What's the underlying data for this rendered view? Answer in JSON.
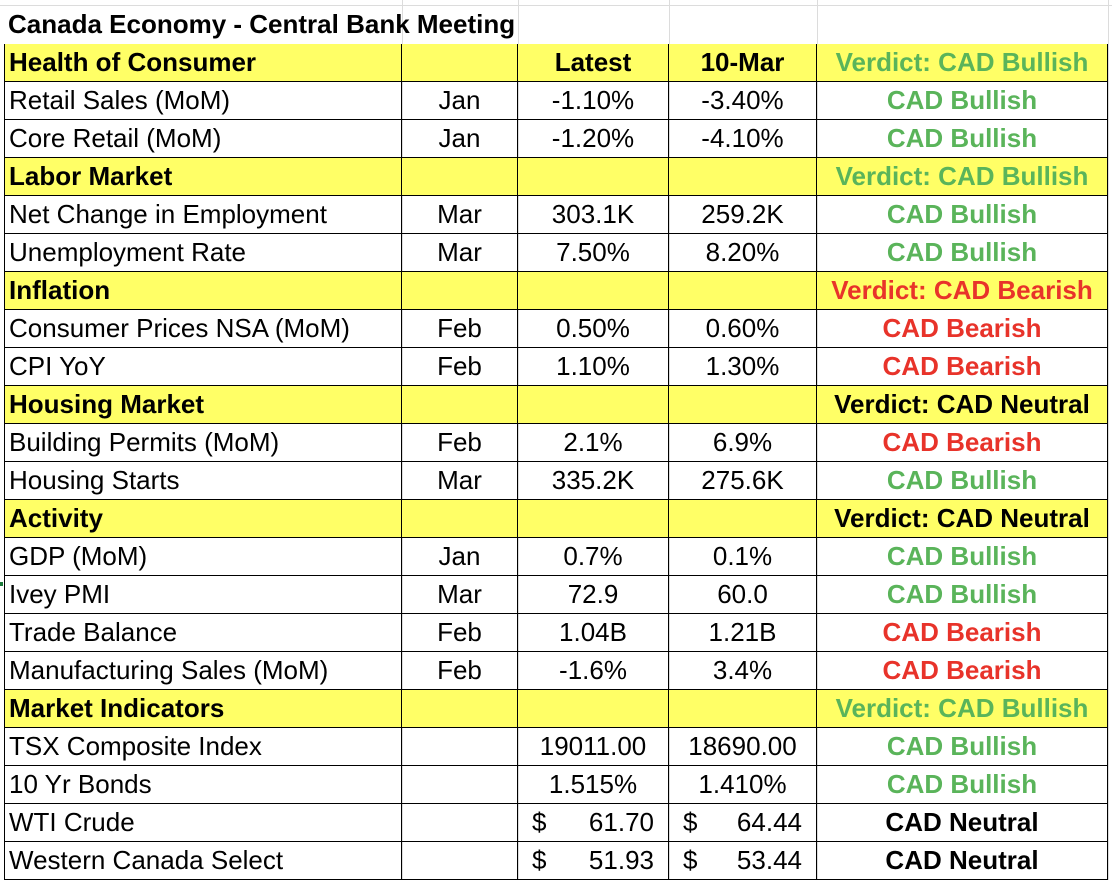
{
  "title": "Canada Economy - Central Bank Meeting",
  "rows": [
    {
      "type": "header",
      "label": "Health of Consumer",
      "period": "",
      "latest": "Latest",
      "prev": "10-Mar",
      "verdict": "Verdict: CAD Bullish",
      "verdict_color": "#5ab45a"
    },
    {
      "type": "data",
      "label": "Retail Sales (MoM)",
      "period": "Jan",
      "latest": "-1.10%",
      "prev": "-3.40%",
      "verdict": "CAD Bullish",
      "verdict_color": "#5ab45a"
    },
    {
      "type": "data",
      "label": "Core Retail (MoM)",
      "period": "Jan",
      "latest": "-1.20%",
      "prev": "-4.10%",
      "verdict": "CAD Bullish",
      "verdict_color": "#5ab45a"
    },
    {
      "type": "header",
      "label": "Labor Market",
      "period": "",
      "latest": "",
      "prev": "",
      "verdict": "Verdict: CAD Bullish",
      "verdict_color": "#5ab45a"
    },
    {
      "type": "data",
      "label": "Net Change in Employment",
      "period": "Mar",
      "latest": "303.1K",
      "prev": "259.2K",
      "verdict": "CAD Bullish",
      "verdict_color": "#5ab45a"
    },
    {
      "type": "data",
      "label": "Unemployment Rate",
      "period": "Mar",
      "latest": "7.50%",
      "prev": "8.20%",
      "verdict": "CAD Bullish",
      "verdict_color": "#5ab45a"
    },
    {
      "type": "header",
      "label": "Inflation",
      "period": "",
      "latest": "",
      "prev": "",
      "verdict": "Verdict: CAD Bearish",
      "verdict_color": "#e8332a"
    },
    {
      "type": "data",
      "label": "Consumer Prices NSA (MoM)",
      "period": "Feb",
      "latest": "0.50%",
      "prev": "0.60%",
      "verdict": "CAD Bearish",
      "verdict_color": "#e8332a"
    },
    {
      "type": "data",
      "label": "CPI YoY",
      "period": "Feb",
      "latest": "1.10%",
      "prev": "1.30%",
      "verdict": "CAD Bearish",
      "verdict_color": "#e8332a"
    },
    {
      "type": "header",
      "label": "Housing Market",
      "period": "",
      "latest": "",
      "prev": "",
      "verdict": "Verdict: CAD Neutral",
      "verdict_color": "#000000"
    },
    {
      "type": "data",
      "label": "Building Permits (MoM)",
      "period": "Feb",
      "latest": "2.1%",
      "prev": "6.9%",
      "verdict": "CAD Bearish",
      "verdict_color": "#e8332a"
    },
    {
      "type": "data",
      "label": "Housing Starts",
      "period": "Mar",
      "latest": "335.2K",
      "prev": "275.6K",
      "verdict": "CAD Bullish",
      "verdict_color": "#5ab45a"
    },
    {
      "type": "header",
      "label": "Activity",
      "period": "",
      "latest": "",
      "prev": "",
      "verdict": "Verdict: CAD Neutral",
      "verdict_color": "#000000"
    },
    {
      "type": "data",
      "label": "GDP (MoM)",
      "period": "Jan",
      "latest": "0.7%",
      "prev": "0.1%",
      "verdict": "CAD Bullish",
      "verdict_color": "#5ab45a"
    },
    {
      "type": "data",
      "label": "Ivey PMI",
      "period": "Mar",
      "latest": "72.9",
      "prev": "60.0",
      "verdict": "CAD Bullish",
      "verdict_color": "#5ab45a"
    },
    {
      "type": "data",
      "label": "Trade Balance",
      "period": "Feb",
      "latest": "1.04B",
      "prev": "1.21B",
      "verdict": "CAD Bearish",
      "verdict_color": "#e8332a"
    },
    {
      "type": "data",
      "label": "Manufacturing Sales (MoM)",
      "period": "Feb",
      "latest": "-1.6%",
      "prev": "3.4%",
      "verdict": "CAD Bearish",
      "verdict_color": "#e8332a"
    },
    {
      "type": "header",
      "label": "Market Indicators",
      "period": "",
      "latest": "",
      "prev": "",
      "verdict": "Verdict: CAD Bullish",
      "verdict_color": "#5ab45a"
    },
    {
      "type": "data",
      "label": "TSX Composite Index",
      "period": "",
      "latest": "19011.00",
      "prev": "18690.00",
      "verdict": "CAD Bullish",
      "verdict_color": "#5ab45a"
    },
    {
      "type": "data",
      "label": "10 Yr Bonds",
      "period": "",
      "latest": "1.515%",
      "prev": "1.410%",
      "verdict": "CAD Bullish",
      "verdict_color": "#5ab45a"
    },
    {
      "type": "money",
      "label": "WTI Crude",
      "period": "",
      "currency": "$",
      "latest": "61.70",
      "prev": "64.44",
      "verdict": "CAD Neutral",
      "verdict_color": "#000000"
    },
    {
      "type": "money",
      "label": "Western Canada Select",
      "period": "",
      "currency": "$",
      "latest": "51.93",
      "prev": "53.44",
      "verdict": "CAD Neutral",
      "verdict_color": "#000000"
    }
  ]
}
